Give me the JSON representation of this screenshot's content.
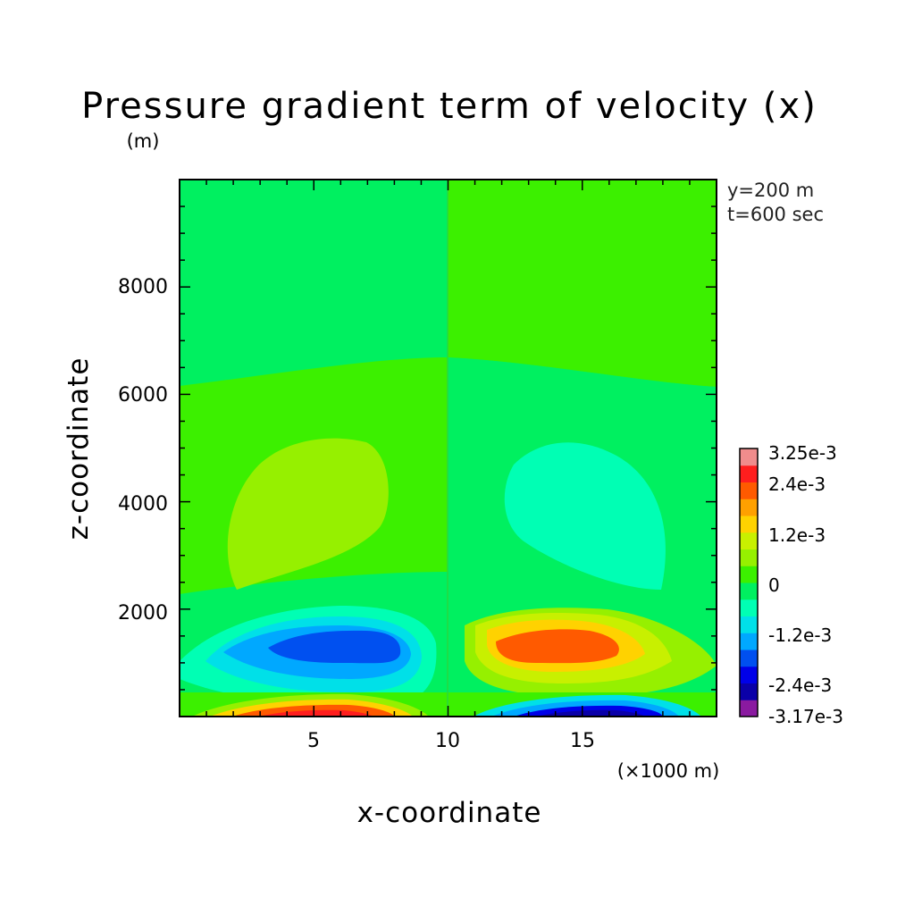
{
  "chart_data": {
    "type": "heatmap",
    "title": "Pressure gradient term of velocity (x)",
    "xlabel": "x-coordinate",
    "ylabel": "z-coordinate",
    "x_unit": "(×1000 m)",
    "y_unit": "(m)",
    "annotations": [
      "y=200 m",
      "t=600 sec"
    ],
    "xlim": [
      0,
      20
    ],
    "ylim": [
      0,
      10000
    ],
    "x_ticks": [
      5,
      10,
      15
    ],
    "y_ticks": [
      2000,
      4000,
      6000,
      8000
    ],
    "colorbar": {
      "levels": [
        -0.00317,
        -0.0028,
        -0.0024,
        -0.002,
        -0.0016,
        -0.0012,
        -0.0008,
        -0.0004,
        0,
        0.0004,
        0.0008,
        0.0012,
        0.0016,
        0.002,
        0.0024,
        0.0028,
        0.00325
      ],
      "colors": [
        "#8a1aa0",
        "#0a00a8",
        "#0000e8",
        "#0050f0",
        "#00a8ff",
        "#00e0e8",
        "#00ffb4",
        "#00f060",
        "#3cf000",
        "#96f000",
        "#c8f000",
        "#ffd200",
        "#ffa000",
        "#ff5a00",
        "#ff1e1e",
        "#f08c8c"
      ],
      "labels": [
        "3.25e-3",
        "2.4e-3",
        "1.2e-3",
        "0",
        "-1.2e-3",
        "-2.4e-3",
        "-3.17e-3"
      ]
    },
    "regions": [
      {
        "level_color": 7,
        "desc": "background near zero"
      },
      {
        "level_color": 8,
        "desc": "upper-right and left field"
      },
      {
        "level_color": 9,
        "desc": "positive cell centered x~6.5, z~3800"
      },
      {
        "level_color": 6,
        "desc": "negative cell centered x~13.5, z~3800"
      },
      {
        "level_color": 3,
        "desc": "negative core x~6.5, z~1300"
      },
      {
        "level_color": 13,
        "desc": "positive core x~13.5, z~1300"
      }
    ]
  }
}
